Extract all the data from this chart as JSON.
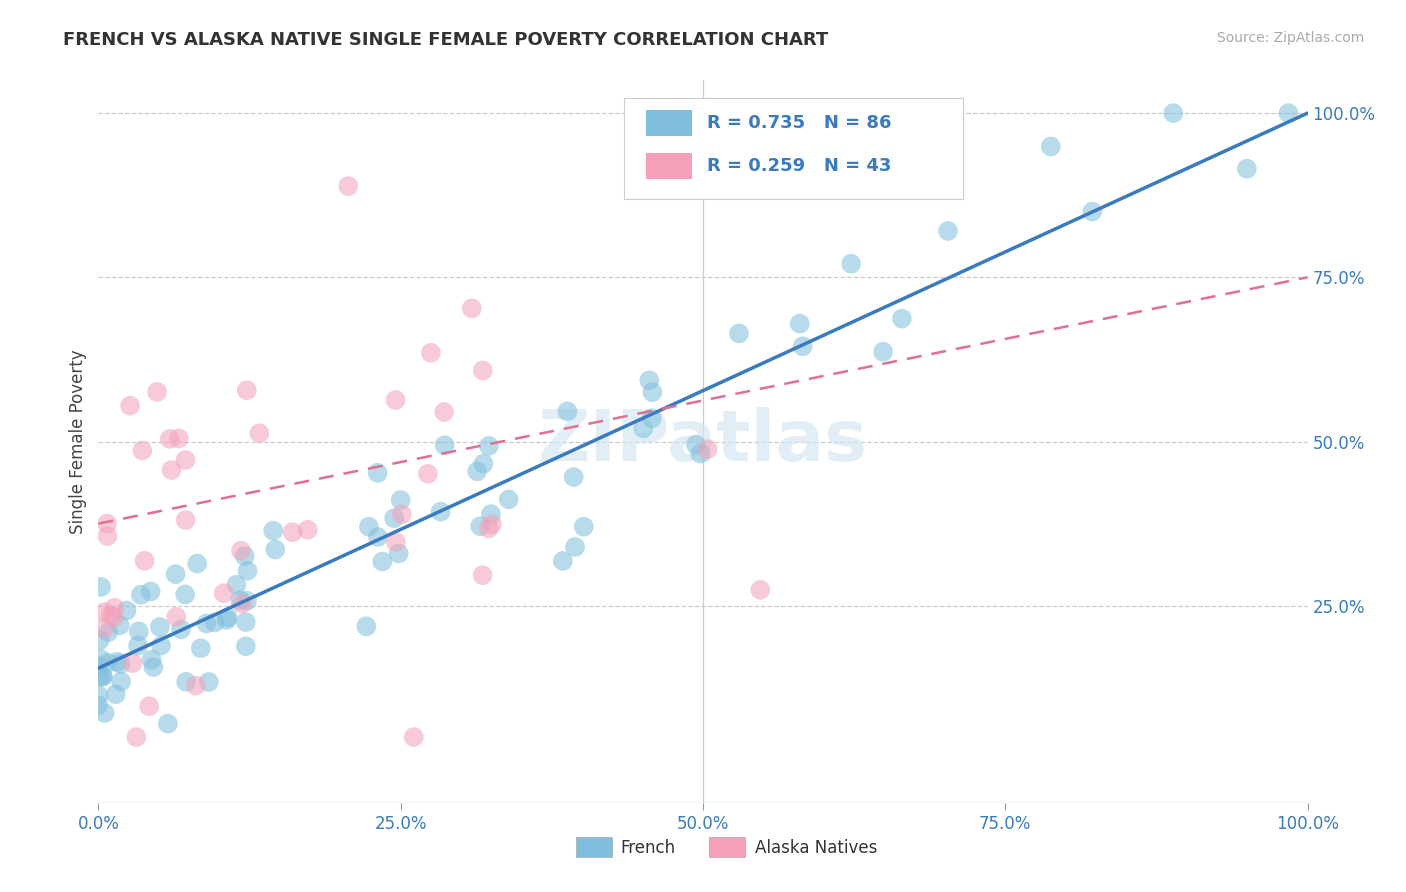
{
  "title": "FRENCH VS ALASKA NATIVE SINGLE FEMALE POVERTY CORRELATION CHART",
  "source": "Source: ZipAtlas.com",
  "ylabel": "Single Female Poverty",
  "xlim": [
    0.0,
    1.0
  ],
  "ylim": [
    -0.05,
    1.05
  ],
  "xtick_labels": [
    "0.0%",
    "25.0%",
    "50.0%",
    "75.0%",
    "100.0%"
  ],
  "xtick_positions": [
    0.0,
    0.25,
    0.5,
    0.75,
    1.0
  ],
  "ytick_labels": [
    "25.0%",
    "50.0%",
    "75.0%",
    "100.0%"
  ],
  "ytick_positions": [
    0.25,
    0.5,
    0.75,
    1.0
  ],
  "french_color": "#7fbfdd",
  "alaska_color": "#f4a0b8",
  "french_line_color": "#3a7abf",
  "alaska_line_color": "#e07090",
  "watermark": "ZIPatlas",
  "legend_R_french": "R = 0.735",
  "legend_N_french": "N = 86",
  "legend_R_alaska": "R = 0.259",
  "legend_N_alaska": "N = 43",
  "french_line_x0": 0.0,
  "french_line_y0": 0.155,
  "french_line_x1": 1.0,
  "french_line_y1": 1.0,
  "alaska_line_x0": 0.0,
  "alaska_line_y0": 0.375,
  "alaska_line_x1": 1.0,
  "alaska_line_y1": 0.75
}
